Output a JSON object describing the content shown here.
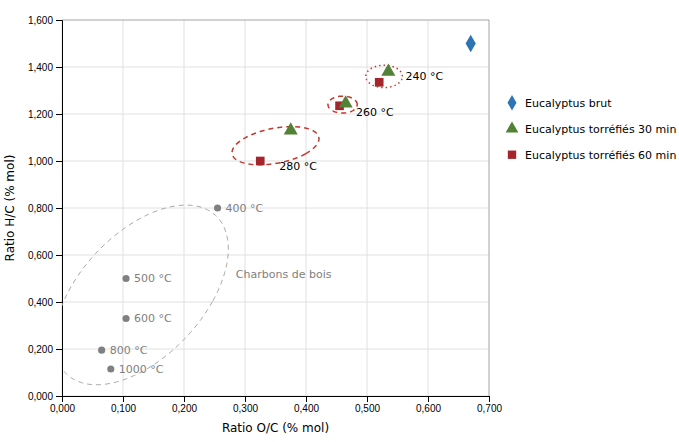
{
  "chart_data": {
    "type": "scatter",
    "xlabel": "Ratio O/C (% mol)",
    "ylabel": "Ratio H/C (% mol)",
    "xlim": [
      0.0,
      0.7
    ],
    "ylim": [
      0.0,
      1.6
    ],
    "xticks": [
      {
        "value": 0.0,
        "label": "0,000"
      },
      {
        "value": 0.1,
        "label": "0,100"
      },
      {
        "value": 0.2,
        "label": "0,200"
      },
      {
        "value": 0.3,
        "label": "0,300"
      },
      {
        "value": 0.4,
        "label": "0,400"
      },
      {
        "value": 0.5,
        "label": "0,500"
      },
      {
        "value": 0.6,
        "label": "0,600"
      },
      {
        "value": 0.7,
        "label": "0,700"
      }
    ],
    "yticks": [
      {
        "value": 0.0,
        "label": "0,000"
      },
      {
        "value": 0.2,
        "label": "0,200"
      },
      {
        "value": 0.4,
        "label": "0,400"
      },
      {
        "value": 0.6,
        "label": "0,600"
      },
      {
        "value": 0.8,
        "label": "0,800"
      },
      {
        "value": 1.0,
        "label": "1,000"
      },
      {
        "value": 1.2,
        "label": "1,200"
      },
      {
        "value": 1.4,
        "label": "1,400"
      },
      {
        "value": 1.6,
        "label": "1,600"
      }
    ],
    "grid": true,
    "legend": "right",
    "series": [
      {
        "name": "Eucalyptus brut",
        "color": "#2E74B5",
        "marker": "diamond",
        "x": [
          0.67
        ],
        "values": [
          1.5
        ]
      },
      {
        "name": "Eucalyptus torréfiés 30 min",
        "color": "#538135",
        "marker": "triangle",
        "x": [
          0.535,
          0.465,
          0.375
        ],
        "values": [
          1.38,
          1.245,
          1.13
        ]
      },
      {
        "name": "Eucalyptus torréfiés 60 min",
        "color": "#A4262C",
        "marker": "square",
        "x": [
          0.52,
          0.455,
          0.325
        ],
        "values": [
          1.335,
          1.235,
          1.0
        ]
      },
      {
        "color": "#808080",
        "marker": "circle",
        "x": [
          0.255,
          0.105,
          0.105,
          0.065,
          0.08
        ],
        "values": [
          0.8,
          0.5,
          0.33,
          0.195,
          0.115
        ],
        "labels": [
          "400 °C",
          "500 °C",
          "600 °C",
          "800 °C",
          "1000 °C"
        ]
      }
    ],
    "annotations": [
      {
        "text": "240 °C",
        "x": 0.563,
        "y": 1.36,
        "color": "#000000"
      },
      {
        "text": "260 °C",
        "x": 0.482,
        "y": 1.21,
        "color": "#000000"
      },
      {
        "text": "280 °C",
        "x": 0.356,
        "y": 0.98,
        "color": "#000000"
      },
      {
        "text": "Charbons de bois",
        "x": 0.285,
        "y": 0.52,
        "color": "#808080"
      }
    ],
    "ellipses": [
      {
        "cx": 0.13,
        "cy": 0.43,
        "width": 0.24,
        "height": 0.78,
        "angle": -12,
        "color": "#AAAAAA",
        "line_style": "dashed"
      },
      {
        "cx": 0.528,
        "cy": 1.36,
        "width": 0.06,
        "height": 0.095,
        "angle": 0,
        "color": "#C0392B",
        "line_style": "dotted"
      },
      {
        "cx": 0.46,
        "cy": 1.24,
        "width": 0.048,
        "height": 0.072,
        "angle": 0,
        "color": "#C0392B",
        "line_style": "dashed"
      },
      {
        "cx": 0.35,
        "cy": 1.065,
        "width": 0.12,
        "height": 0.18,
        "angle": -35,
        "color": "#C0392B",
        "line_style": "dashed"
      }
    ]
  }
}
